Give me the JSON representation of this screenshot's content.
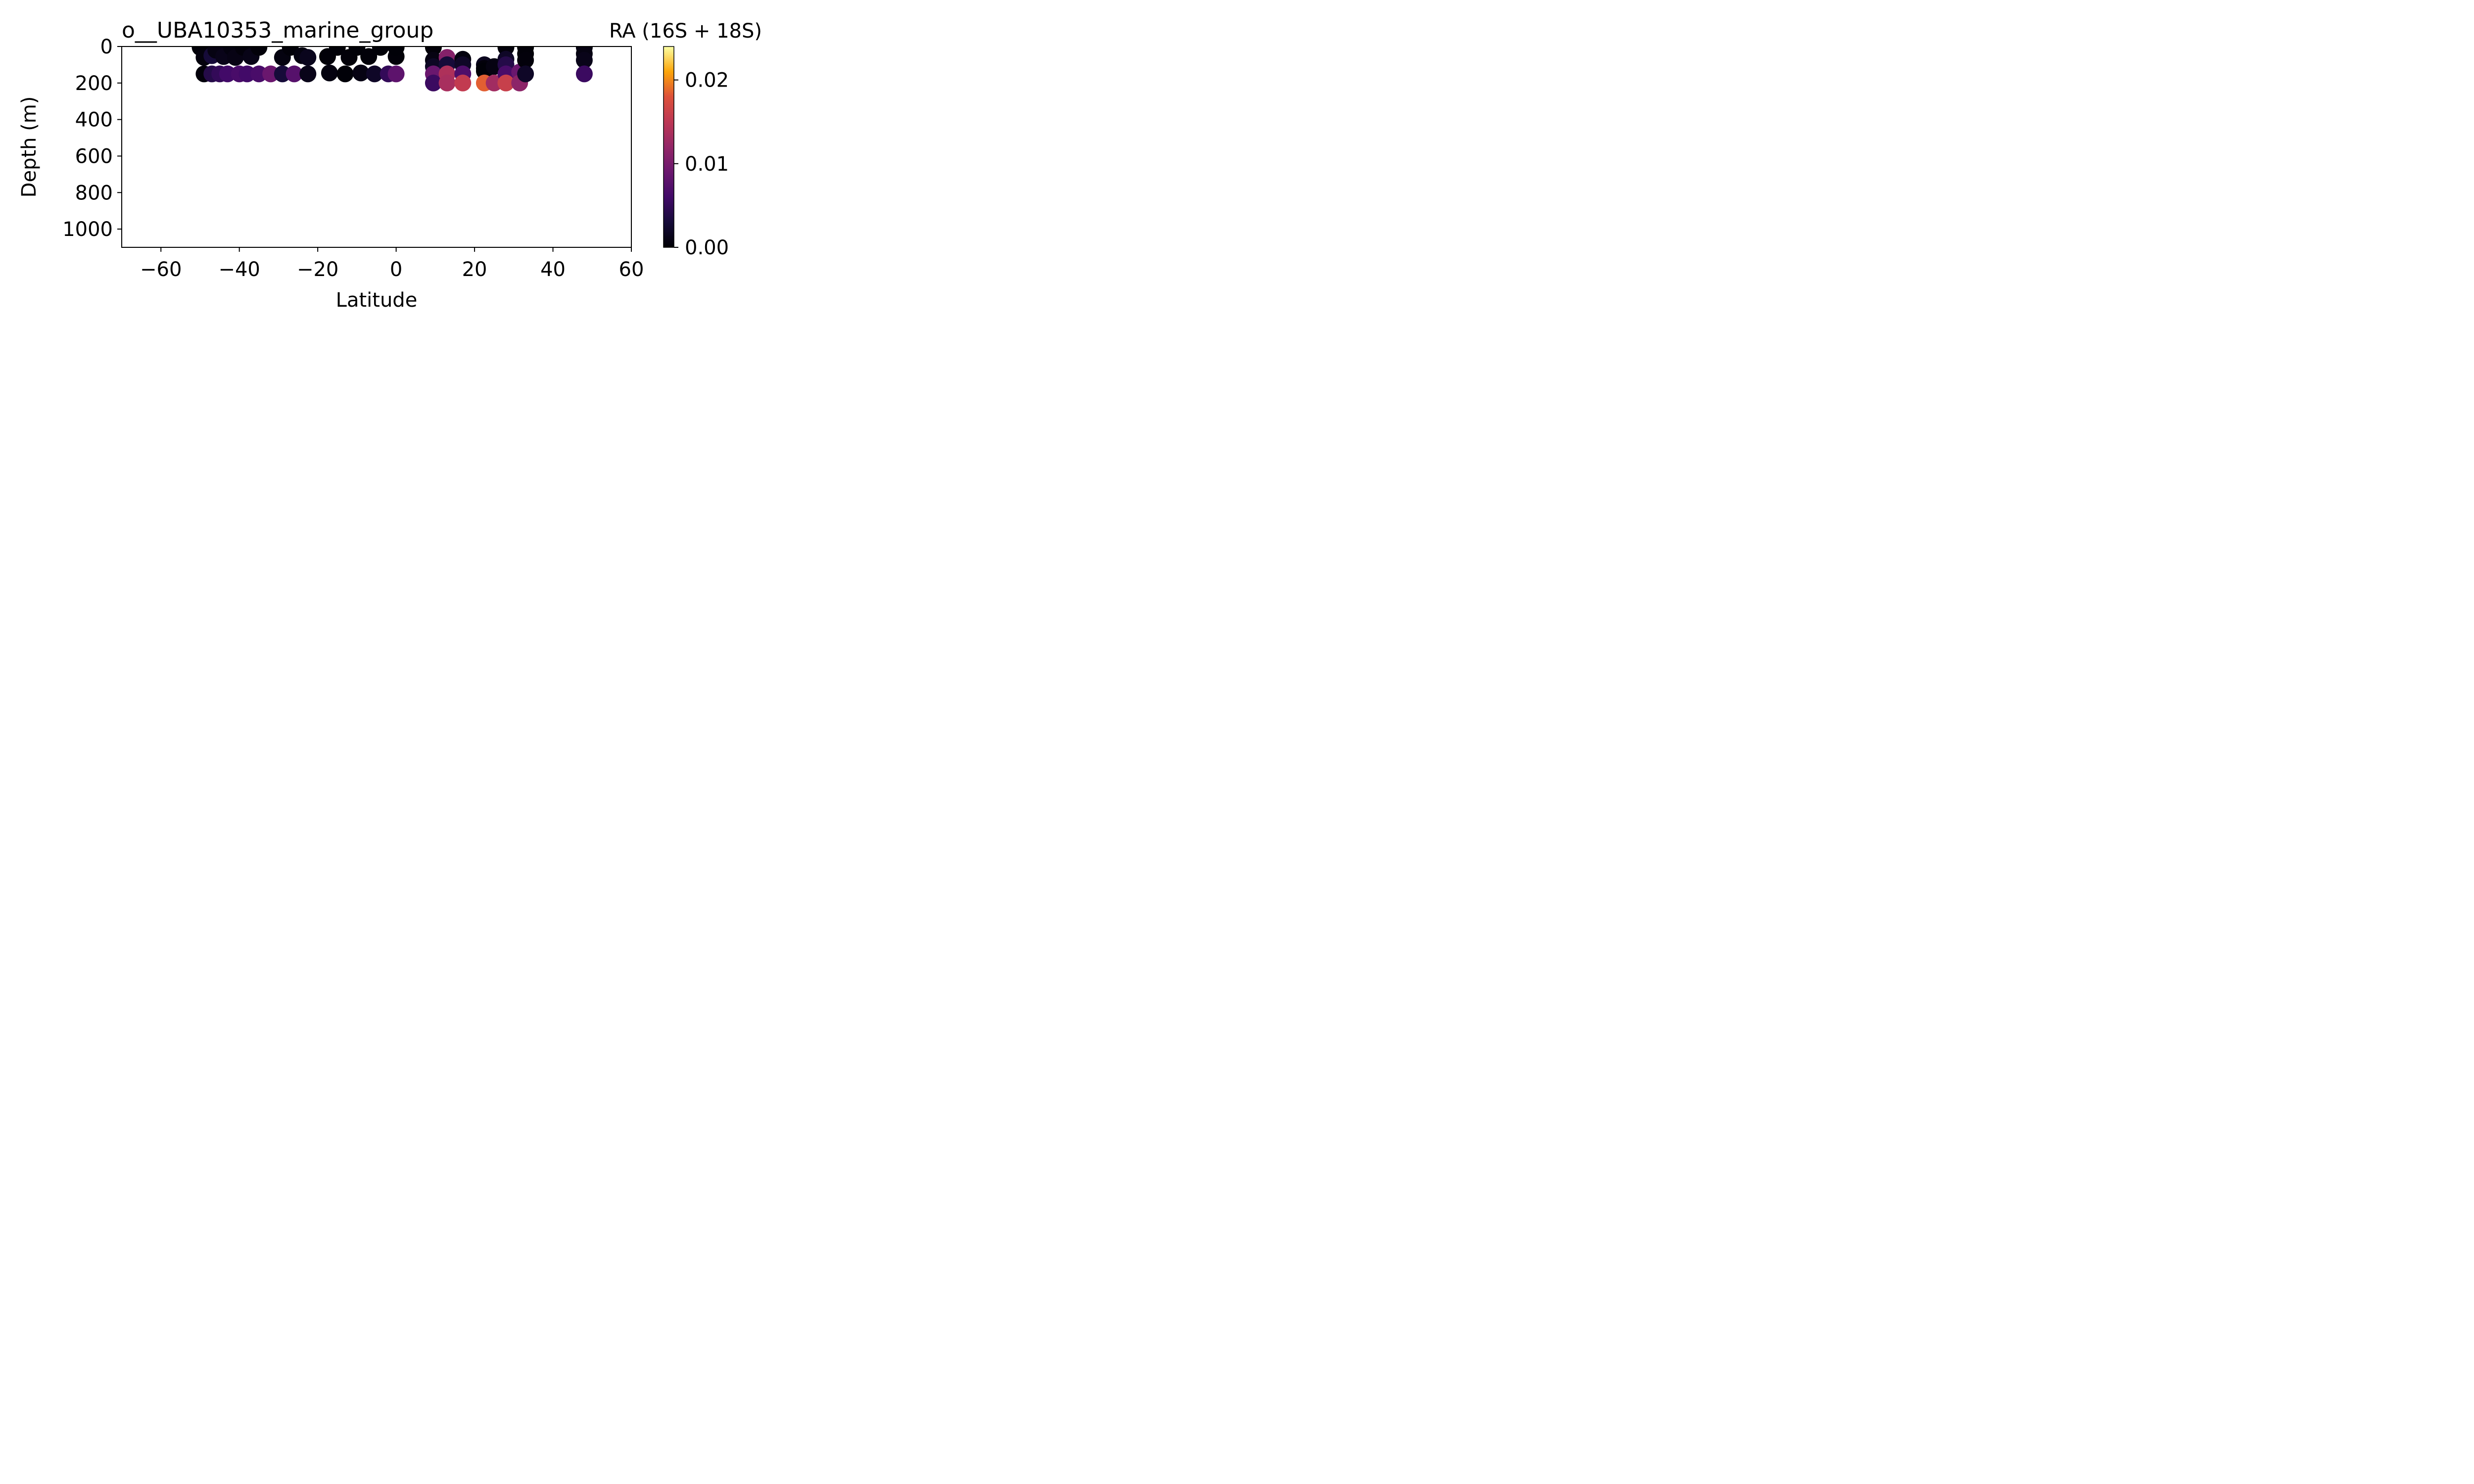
{
  "chart_data": {
    "type": "scatter",
    "title": "o__UBA10353_marine_group",
    "xlabel": "Latitude",
    "ylabel": "Depth (m)",
    "xlim": [
      -70,
      60
    ],
    "ylim": [
      1100,
      0
    ],
    "y_inverted": true,
    "xticks": [
      -60,
      -40,
      -20,
      0,
      20,
      40,
      60
    ],
    "xtick_labels": [
      "−60",
      "−40",
      "−20",
      "0",
      "20",
      "40",
      "60"
    ],
    "yticks": [
      0,
      200,
      400,
      600,
      800,
      1000
    ],
    "ytick_labels": [
      "0",
      "200",
      "400",
      "600",
      "800",
      "1000"
    ],
    "grid": false,
    "colorbar": {
      "label": "RA (16S + 18S)",
      "colormap": "inferno",
      "range": [
        0,
        0.024
      ],
      "ticks": [
        0.0,
        0.01,
        0.02
      ],
      "tick_labels": [
        "0.00",
        "0.01",
        "0.02"
      ]
    },
    "points": [
      {
        "x": -50,
        "y": 5,
        "v": 0.0003
      },
      {
        "x": -49,
        "y": 60,
        "v": 0.0005
      },
      {
        "x": -49,
        "y": 150,
        "v": 0.0004
      },
      {
        "x": -47,
        "y": 150,
        "v": 0.004
      },
      {
        "x": -47,
        "y": 50,
        "v": 0.003
      },
      {
        "x": -46,
        "y": 20,
        "v": 0.0008
      },
      {
        "x": -45,
        "y": 150,
        "v": 0.005
      },
      {
        "x": -44,
        "y": 55,
        "v": 0.0012
      },
      {
        "x": -43,
        "y": 150,
        "v": 0.006
      },
      {
        "x": -42,
        "y": 5,
        "v": 0.0006
      },
      {
        "x": -41,
        "y": 60,
        "v": 0.0009
      },
      {
        "x": -40,
        "y": 150,
        "v": 0.0065
      },
      {
        "x": -39,
        "y": 5,
        "v": 0.0004
      },
      {
        "x": -38,
        "y": 150,
        "v": 0.006
      },
      {
        "x": -37,
        "y": 55,
        "v": 0.0011
      },
      {
        "x": -35,
        "y": 150,
        "v": 0.0065
      },
      {
        "x": -35,
        "y": 5,
        "v": 0.0003
      },
      {
        "x": -32,
        "y": 150,
        "v": 0.009
      },
      {
        "x": -29,
        "y": 60,
        "v": 0.0007
      },
      {
        "x": -29,
        "y": 150,
        "v": 0.003
      },
      {
        "x": -27,
        "y": 5,
        "v": 0.0003
      },
      {
        "x": -26,
        "y": 150,
        "v": 0.0075
      },
      {
        "x": -24,
        "y": 50,
        "v": 0.0006
      },
      {
        "x": -22.5,
        "y": 150,
        "v": 0.0012
      },
      {
        "x": -22.5,
        "y": 60,
        "v": 0.0014
      },
      {
        "x": -17.5,
        "y": 55,
        "v": 0.0003
      },
      {
        "x": -17,
        "y": 145,
        "v": 0.0006
      },
      {
        "x": -15,
        "y": 5,
        "v": 0.0002
      },
      {
        "x": -13,
        "y": 150,
        "v": 0.0002
      },
      {
        "x": -12,
        "y": 60,
        "v": 0.0003
      },
      {
        "x": -10,
        "y": 5,
        "v": 0.0002
      },
      {
        "x": -9,
        "y": 145,
        "v": 0.0008
      },
      {
        "x": -7,
        "y": 55,
        "v": 0.0003
      },
      {
        "x": -5.5,
        "y": 150,
        "v": 0.002
      },
      {
        "x": -4,
        "y": 5,
        "v": 0.0002
      },
      {
        "x": -2,
        "y": 150,
        "v": 0.005
      },
      {
        "x": 0,
        "y": 55,
        "v": 0.0003
      },
      {
        "x": 0,
        "y": 5,
        "v": 0.0002
      },
      {
        "x": 0,
        "y": 150,
        "v": 0.008
      },
      {
        "x": 9.5,
        "y": 5,
        "v": 0.0003
      },
      {
        "x": 9.5,
        "y": 75,
        "v": 0.0008
      },
      {
        "x": 9.5,
        "y": 110,
        "v": 0.0018
      },
      {
        "x": 9.5,
        "y": 150,
        "v": 0.009
      },
      {
        "x": 9.5,
        "y": 200,
        "v": 0.0055
      },
      {
        "x": 13,
        "y": 60,
        "v": 0.011
      },
      {
        "x": 13,
        "y": 100,
        "v": 0.003
      },
      {
        "x": 13,
        "y": 150,
        "v": 0.014
      },
      {
        "x": 13,
        "y": 200,
        "v": 0.0135
      },
      {
        "x": 17,
        "y": 70,
        "v": 0.0006
      },
      {
        "x": 17,
        "y": 100,
        "v": 0.002
      },
      {
        "x": 17,
        "y": 150,
        "v": 0.007
      },
      {
        "x": 17,
        "y": 200,
        "v": 0.0155
      },
      {
        "x": 22.5,
        "y": 100,
        "v": 0.0015
      },
      {
        "x": 22.5,
        "y": 120,
        "v": 0.0004
      },
      {
        "x": 22.5,
        "y": 135,
        "v": 0.0002
      },
      {
        "x": 22.5,
        "y": 200,
        "v": 0.0185
      },
      {
        "x": 25,
        "y": 110,
        "v": 0.0008
      },
      {
        "x": 25,
        "y": 200,
        "v": 0.013
      },
      {
        "x": 28,
        "y": 5,
        "v": 0.0004
      },
      {
        "x": 28,
        "y": 70,
        "v": 0.002
      },
      {
        "x": 28,
        "y": 100,
        "v": 0.004
      },
      {
        "x": 28,
        "y": 150,
        "v": 0.0065
      },
      {
        "x": 28,
        "y": 200,
        "v": 0.016
      },
      {
        "x": 31.5,
        "y": 140,
        "v": 0.009
      },
      {
        "x": 31.5,
        "y": 200,
        "v": 0.0115
      },
      {
        "x": 33,
        "y": 5,
        "v": 0.0002
      },
      {
        "x": 33,
        "y": 40,
        "v": 0.0003
      },
      {
        "x": 33,
        "y": 75,
        "v": 0.0004
      },
      {
        "x": 33,
        "y": 150,
        "v": 0.002
      },
      {
        "x": 48,
        "y": 5,
        "v": 0.0006
      },
      {
        "x": 48,
        "y": 40,
        "v": 0.0008
      },
      {
        "x": 48,
        "y": 75,
        "v": 0.0012
      },
      {
        "x": 48,
        "y": 150,
        "v": 0.0055
      }
    ]
  }
}
